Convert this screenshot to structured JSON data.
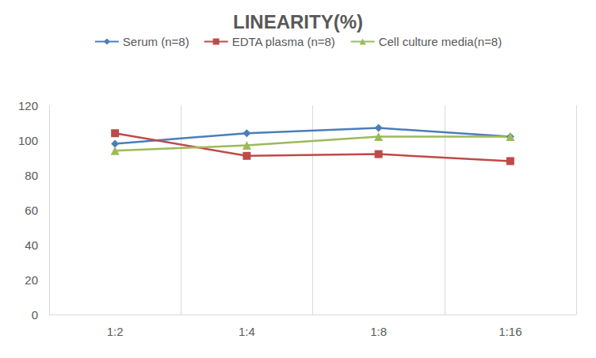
{
  "chart_data": {
    "type": "line",
    "title": "LINEARITY(%)",
    "categories": [
      "1:2",
      "1:4",
      "1:8",
      "1:16"
    ],
    "series": [
      {
        "name": "Serum (n=8)",
        "color": "#4a7ebb",
        "marker": "diamond",
        "values": [
          98,
          104,
          107,
          102
        ]
      },
      {
        "name": "EDTA plasma (n=8)",
        "color": "#be4b48",
        "marker": "square",
        "values": [
          104,
          91,
          92,
          88
        ]
      },
      {
        "name": "Cell culture media(n=8)",
        "color": "#9bbb59",
        "marker": "triangle",
        "values": [
          94,
          97,
          102,
          102
        ]
      }
    ],
    "ylim": [
      0,
      120
    ],
    "yticks": [
      0,
      20,
      40,
      60,
      80,
      100,
      120
    ],
    "grid": true,
    "legend": "top"
  }
}
